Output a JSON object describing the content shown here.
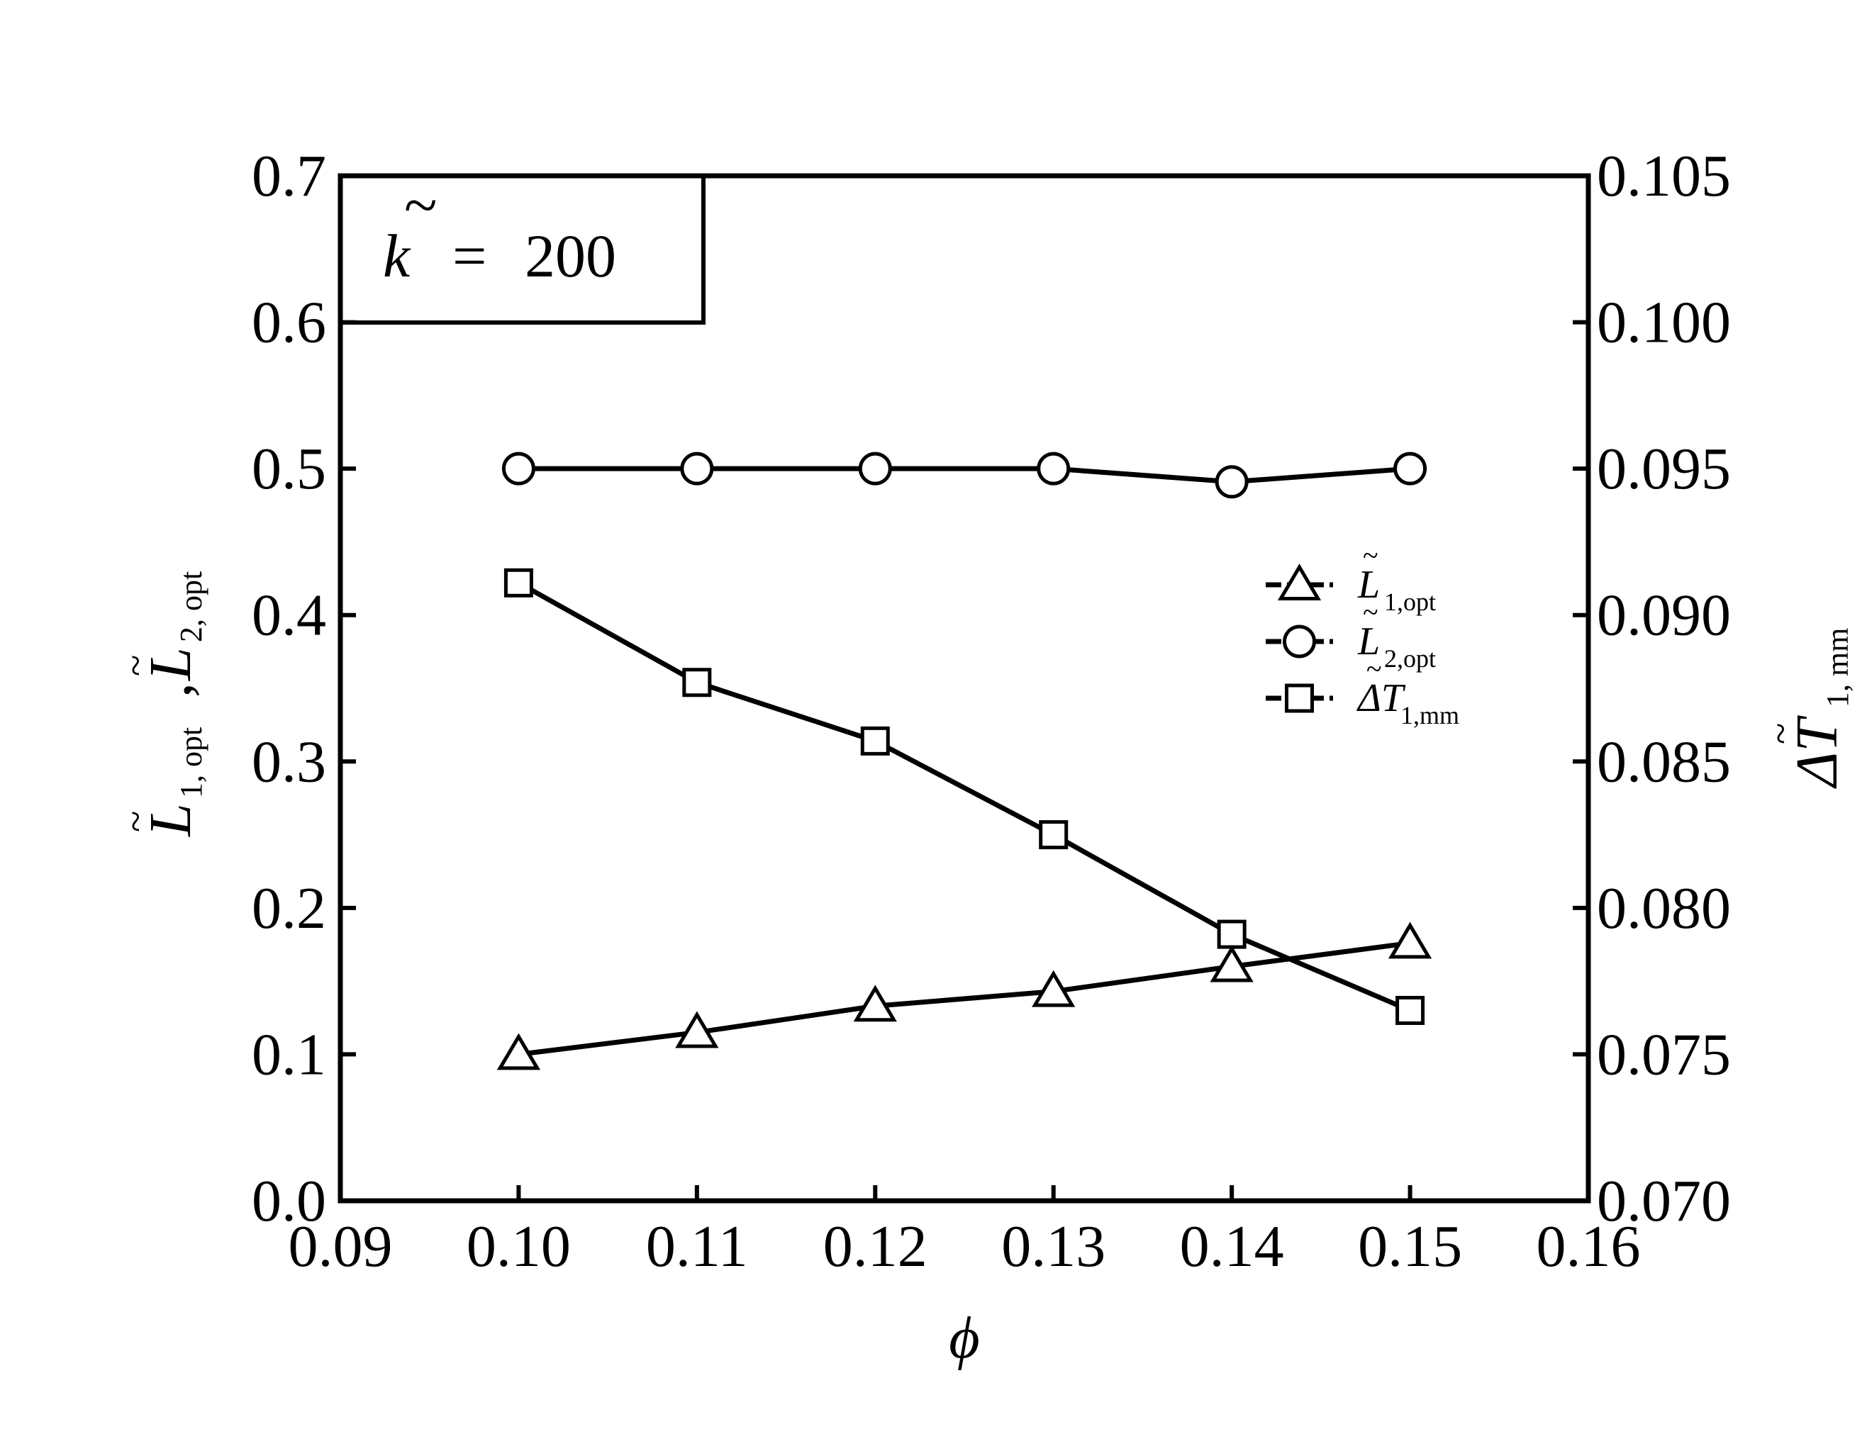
{
  "chart_data": {
    "type": "line",
    "annotation": {
      "symbol": "k",
      "equals": "=",
      "value": "200"
    },
    "x": [
      0.1,
      0.11,
      0.12,
      0.13,
      0.14,
      0.15
    ],
    "xlabel": "ϕ",
    "xlim": [
      0.09,
      0.16
    ],
    "x_ticks": [
      "0.09",
      "0.10",
      "0.11",
      "0.12",
      "0.13",
      "0.14",
      "0.15",
      "0.16"
    ],
    "ylabel_left": {
      "part1": "L",
      "sub1": "1,  opt",
      "sep": ",",
      "part2": "L",
      "sub2": "2,  opt"
    },
    "ylim_left": [
      0.0,
      0.7
    ],
    "y_ticks_left": [
      "0.0",
      "0.1",
      "0.2",
      "0.3",
      "0.4",
      "0.5",
      "0.6",
      "0.7"
    ],
    "ylabel_right": {
      "main": "ΔT",
      "sub": "1,  mm"
    },
    "ylim_right": [
      0.07,
      0.105
    ],
    "y_ticks_right": [
      "0.070",
      "0.075",
      "0.080",
      "0.085",
      "0.090",
      "0.095",
      "0.100",
      "0.105"
    ],
    "series": [
      {
        "name": "L",
        "sub": "1,opt",
        "marker": "triangle",
        "axis": "left",
        "values": [
          0.1,
          0.115,
          0.133,
          0.143,
          0.16,
          0.176
        ]
      },
      {
        "name": "L",
        "sub": "2,opt",
        "marker": "circle",
        "axis": "left",
        "values": [
          0.5,
          0.5,
          0.5,
          0.5,
          0.491,
          0.5
        ]
      },
      {
        "name": "ΔT",
        "sub": "1,mm",
        "marker": "square",
        "axis": "right",
        "values": [
          0.0911,
          0.0877,
          0.0857,
          0.0825,
          0.0791,
          0.0765
        ]
      }
    ],
    "legend_position": "right-center",
    "grid": false
  }
}
